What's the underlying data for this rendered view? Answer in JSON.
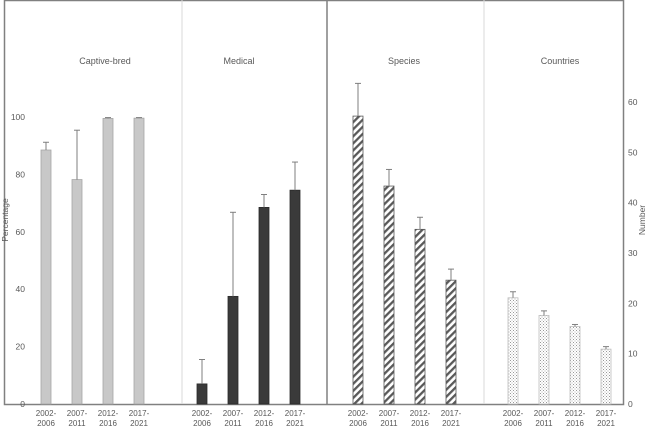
{
  "chart_data": {
    "type": "bar",
    "panels": [
      {
        "title": "Captive-bred",
        "axis": "left",
        "style": "light",
        "values": [
          88.5,
          78.2,
          99.5,
          99.6
        ],
        "err_upper": [
          91.2,
          95.4,
          99.8,
          99.8
        ]
      },
      {
        "title": "Medical",
        "axis": "left",
        "style": "dark",
        "values": [
          7.0,
          37.5,
          68.5,
          74.5
        ],
        "err_upper": [
          15.5,
          66.8,
          73.0,
          84.3
        ]
      },
      {
        "title": "Species",
        "axis": "right",
        "style": "hatch",
        "values": [
          57.2,
          43.3,
          34.7,
          24.6
        ],
        "err_upper": [
          63.7,
          46.6,
          37.1,
          26.8
        ]
      },
      {
        "title": "Countries",
        "axis": "right",
        "style": "dotted",
        "values": [
          21.1,
          17.6,
          15.4,
          10.9
        ],
        "err_upper": [
          22.3,
          18.5,
          15.8,
          11.4
        ]
      }
    ],
    "categories": [
      "2002-\n2006",
      "2007-\n2011",
      "2012-\n2016",
      "2017-\n2021"
    ],
    "y_left": {
      "label": "Percentage",
      "range": [
        0,
        140
      ],
      "ticks": [
        0,
        20,
        40,
        60,
        80,
        100
      ]
    },
    "y_right": {
      "label": "Number",
      "range": [
        0,
        80
      ],
      "ticks": [
        0,
        10,
        20,
        30,
        40,
        50,
        60
      ]
    },
    "grid": false,
    "colors": {
      "light": "#c8c8c8",
      "light_edge": "#a6a6a6",
      "dark": "#3a3a3a",
      "hatch": "#595959",
      "dotted": "#9a9a9a",
      "frame": "#808080",
      "separator": "#d9d9d9",
      "error": "#7f7f7f"
    }
  }
}
